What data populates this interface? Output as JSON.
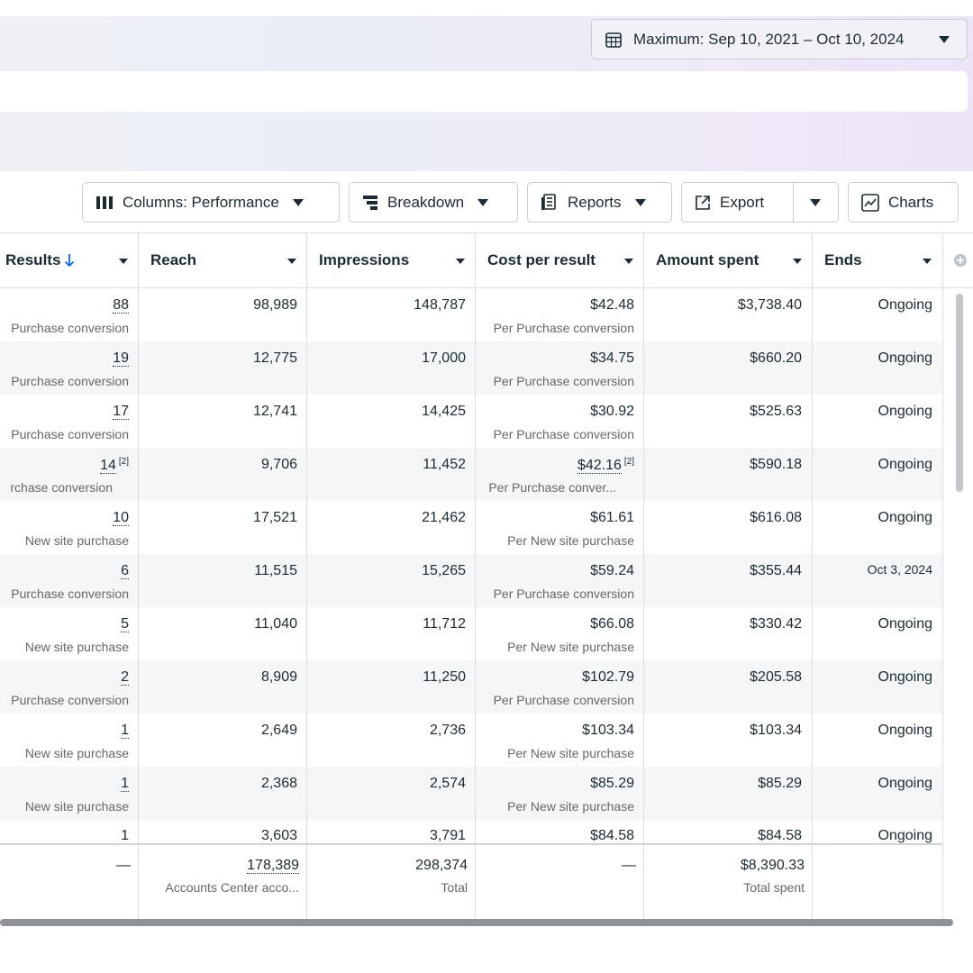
{
  "date_range": {
    "label": "Maximum: Sep 10, 2021 – Oct 10, 2024",
    "icon": "calendar-icon"
  },
  "toolbar": {
    "columns_label": "Columns: Performance",
    "breakdown_label": "Breakdown",
    "reports_label": "Reports",
    "export_label": "Export",
    "charts_label": "Charts"
  },
  "columns": {
    "results": "Results",
    "reach": "Reach",
    "impressions": "Impressions",
    "cost_per_result": "Cost per result",
    "amount_spent": "Amount spent",
    "ends": "Ends"
  },
  "rows": [
    {
      "results": "88",
      "results_sub": "Purchase conversion",
      "reach": "98,989",
      "impressions": "148,787",
      "cost": "$42.48",
      "cost_sub": "Per Purchase conversion",
      "spent": "$3,738.40",
      "ends": "Ongoing"
    },
    {
      "results": "19",
      "results_sub": "Purchase conversion",
      "reach": "12,775",
      "impressions": "17,000",
      "cost": "$34.75",
      "cost_sub": "Per Purchase conversion",
      "spent": "$660.20",
      "ends": "Ongoing"
    },
    {
      "results": "17",
      "results_sub": "Purchase conversion",
      "reach": "12,741",
      "impressions": "14,425",
      "cost": "$30.92",
      "cost_sub": "Per Purchase conversion",
      "spent": "$525.63",
      "ends": "Ongoing"
    },
    {
      "results": "14",
      "results_note": "[2]",
      "results_sub": "rchase conversion",
      "reach": "9,706",
      "impressions": "11,452",
      "cost": "$42.16",
      "cost_note": "[2]",
      "cost_sub": "Per Purchase conver...",
      "spent": "$590.18",
      "ends": "Ongoing"
    },
    {
      "results": "10",
      "results_sub": "New site purchase",
      "reach": "17,521",
      "impressions": "21,462",
      "cost": "$61.61",
      "cost_sub": "Per New site purchase",
      "spent": "$616.08",
      "ends": "Ongoing"
    },
    {
      "results": "6",
      "results_sub": "Purchase conversion",
      "reach": "11,515",
      "impressions": "15,265",
      "cost": "$59.24",
      "cost_sub": "Per Purchase conversion",
      "spent": "$355.44",
      "ends": "Oct 3, 2024"
    },
    {
      "results": "5",
      "results_sub": "New site purchase",
      "reach": "11,040",
      "impressions": "11,712",
      "cost": "$66.08",
      "cost_sub": "Per New site purchase",
      "spent": "$330.42",
      "ends": "Ongoing"
    },
    {
      "results": "2",
      "results_sub": "Purchase conversion",
      "reach": "8,909",
      "impressions": "11,250",
      "cost": "$102.79",
      "cost_sub": "Per Purchase conversion",
      "spent": "$205.58",
      "ends": "Ongoing"
    },
    {
      "results": "1",
      "results_sub": "New site purchase",
      "reach": "2,649",
      "impressions": "2,736",
      "cost": "$103.34",
      "cost_sub": "Per New site purchase",
      "spent": "$103.34",
      "ends": "Ongoing"
    },
    {
      "results": "1",
      "results_sub": "New site purchase",
      "reach": "2,368",
      "impressions": "2,574",
      "cost": "$85.29",
      "cost_sub": "Per New site purchase",
      "spent": "$85.29",
      "ends": "Ongoing"
    },
    {
      "results": "1",
      "results_sub": "",
      "reach": "3,603",
      "impressions": "3,791",
      "cost": "$84.58",
      "cost_sub": "",
      "spent": "$84.58",
      "ends": "Ongoing"
    }
  ],
  "totals": {
    "results": "—",
    "reach": "178,389",
    "reach_sub": "Accounts Center acco...",
    "impressions": "298,374",
    "impressions_sub": "Total",
    "cost": "—",
    "spent": "$8,390.33",
    "spent_sub": "Total spent"
  },
  "colors": {
    "accent": "#0866ff",
    "alt_row": "#f5f6f7",
    "border": "#dadde1"
  }
}
